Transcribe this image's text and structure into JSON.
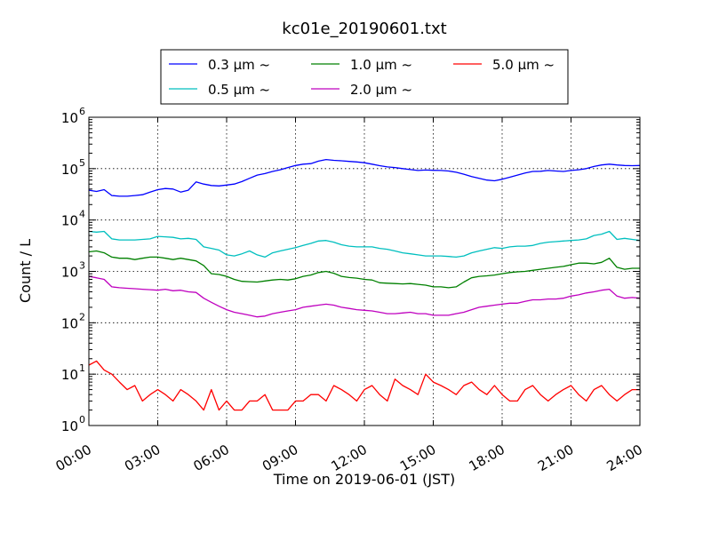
{
  "chart_data": {
    "type": "line",
    "title": "kc01e_20190601.txt",
    "xlabel": "Time on 2019-06-01 (JST)",
    "ylabel": "Count / L",
    "yscale": "log",
    "ylim": [
      1,
      1000000
    ],
    "xlim": [
      "00:00",
      "24:00"
    ],
    "x_ticks": [
      "00:00",
      "03:00",
      "06:00",
      "09:00",
      "12:00",
      "15:00",
      "18:00",
      "21:00",
      "24:00"
    ],
    "y_ticks": [
      {
        "base": "10",
        "exp": "0",
        "value": 1
      },
      {
        "base": "10",
        "exp": "1",
        "value": 10
      },
      {
        "base": "10",
        "exp": "2",
        "value": 100
      },
      {
        "base": "10",
        "exp": "3",
        "value": 1000
      },
      {
        "base": "10",
        "exp": "4",
        "value": 10000
      },
      {
        "base": "10",
        "exp": "5",
        "value": 100000
      },
      {
        "base": "10",
        "exp": "6",
        "value": 1000000
      }
    ],
    "grid": true,
    "legend_position": "top",
    "x": [
      "00:00",
      "00:20",
      "00:40",
      "01:00",
      "01:20",
      "01:40",
      "02:00",
      "02:20",
      "02:40",
      "03:00",
      "03:20",
      "03:40",
      "04:00",
      "04:20",
      "04:40",
      "05:00",
      "05:20",
      "05:40",
      "06:00",
      "06:20",
      "06:40",
      "07:00",
      "07:20",
      "07:40",
      "08:00",
      "08:20",
      "08:40",
      "09:00",
      "09:20",
      "09:40",
      "10:00",
      "10:20",
      "10:40",
      "11:00",
      "11:20",
      "11:40",
      "12:00",
      "12:20",
      "12:40",
      "13:00",
      "13:20",
      "13:40",
      "14:00",
      "14:20",
      "14:40",
      "15:00",
      "15:20",
      "15:40",
      "16:00",
      "16:20",
      "16:40",
      "17:00",
      "17:20",
      "17:40",
      "18:00",
      "18:20",
      "18:40",
      "19:00",
      "19:20",
      "19:40",
      "20:00",
      "20:20",
      "20:40",
      "21:00",
      "21:20",
      "21:40",
      "22:00",
      "22:20",
      "22:40",
      "23:00",
      "23:20",
      "23:40",
      "24:00"
    ],
    "series": [
      {
        "name": "0.3 μm ~",
        "color": "#0000ff",
        "values": [
          38000,
          36000,
          39000,
          30000,
          29000,
          29000,
          30000,
          31000,
          35000,
          39000,
          41000,
          40000,
          35000,
          38000,
          55000,
          50000,
          47000,
          46000,
          48000,
          50000,
          56000,
          65000,
          75000,
          80000,
          88000,
          95000,
          105000,
          115000,
          122000,
          125000,
          140000,
          150000,
          145000,
          142000,
          138000,
          135000,
          130000,
          122000,
          114000,
          108000,
          105000,
          100000,
          96000,
          92000,
          94000,
          93000,
          92000,
          90000,
          85000,
          78000,
          70000,
          65000,
          60000,
          58000,
          62000,
          68000,
          75000,
          82000,
          88000,
          89000,
          92000,
          90000,
          88000,
          92000,
          95000,
          100000,
          110000,
          118000,
          122000,
          118000,
          115000,
          114000,
          115000
        ]
      },
      {
        "name": "0.5 μm ~",
        "color": "#00bfbf",
        "values": [
          6000,
          5800,
          6000,
          4300,
          4100,
          4100,
          4100,
          4200,
          4300,
          4800,
          4700,
          4600,
          4300,
          4400,
          4200,
          3000,
          2800,
          2600,
          2100,
          2000,
          2200,
          2500,
          2100,
          1900,
          2300,
          2500,
          2700,
          2900,
          3200,
          3500,
          3900,
          4000,
          3700,
          3300,
          3100,
          3000,
          3000,
          3000,
          2800,
          2700,
          2500,
          2300,
          2200,
          2100,
          2000,
          2000,
          2000,
          1950,
          1900,
          2000,
          2300,
          2500,
          2700,
          2900,
          2800,
          3000,
          3100,
          3100,
          3200,
          3500,
          3700,
          3800,
          3900,
          4000,
          4100,
          4300,
          5000,
          5300,
          6000,
          4200,
          4400,
          4200,
          4000
        ]
      },
      {
        "name": "1.0 μm ~",
        "color": "#008000",
        "values": [
          2400,
          2500,
          2300,
          1900,
          1800,
          1800,
          1700,
          1800,
          1900,
          1900,
          1800,
          1700,
          1800,
          1700,
          1600,
          1300,
          900,
          870,
          800,
          700,
          640,
          630,
          620,
          650,
          680,
          700,
          680,
          720,
          800,
          850,
          950,
          1000,
          920,
          800,
          760,
          740,
          700,
          680,
          600,
          590,
          580,
          570,
          580,
          560,
          540,
          500,
          500,
          480,
          500,
          620,
          750,
          800,
          820,
          850,
          900,
          950,
          980,
          1000,
          1050,
          1100,
          1150,
          1200,
          1250,
          1350,
          1450,
          1450,
          1400,
          1500,
          1800,
          1200,
          1100,
          1150,
          1150
        ]
      },
      {
        "name": "2.0 μm ~",
        "color": "#bf00bf",
        "values": [
          800,
          750,
          700,
          500,
          480,
          470,
          460,
          450,
          440,
          430,
          450,
          420,
          430,
          400,
          390,
          300,
          250,
          210,
          180,
          160,
          150,
          140,
          130,
          135,
          150,
          160,
          170,
          180,
          200,
          210,
          220,
          230,
          220,
          200,
          190,
          180,
          175,
          170,
          160,
          150,
          150,
          155,
          160,
          150,
          150,
          140,
          140,
          140,
          150,
          160,
          180,
          200,
          210,
          220,
          230,
          240,
          240,
          260,
          280,
          280,
          290,
          290,
          300,
          330,
          350,
          380,
          400,
          430,
          450,
          330,
          300,
          310,
          300
        ]
      },
      {
        "name": "5.0 μm ~",
        "color": "#ff0000",
        "values": [
          15,
          18,
          12,
          10,
          7,
          5,
          6,
          3,
          4,
          5,
          4,
          3,
          5,
          4,
          3,
          2,
          5,
          2,
          3,
          2,
          2,
          3,
          3,
          4,
          2,
          2,
          2,
          3,
          3,
          4,
          4,
          3,
          6,
          5,
          4,
          3,
          5,
          6,
          4,
          3,
          8,
          6,
          5,
          4,
          10,
          7,
          6,
          5,
          4,
          6,
          7,
          5,
          4,
          6,
          4,
          3,
          3,
          5,
          6,
          4,
          3,
          4,
          5,
          6,
          4,
          3,
          5,
          6,
          4,
          3,
          4,
          5,
          5
        ]
      }
    ]
  }
}
